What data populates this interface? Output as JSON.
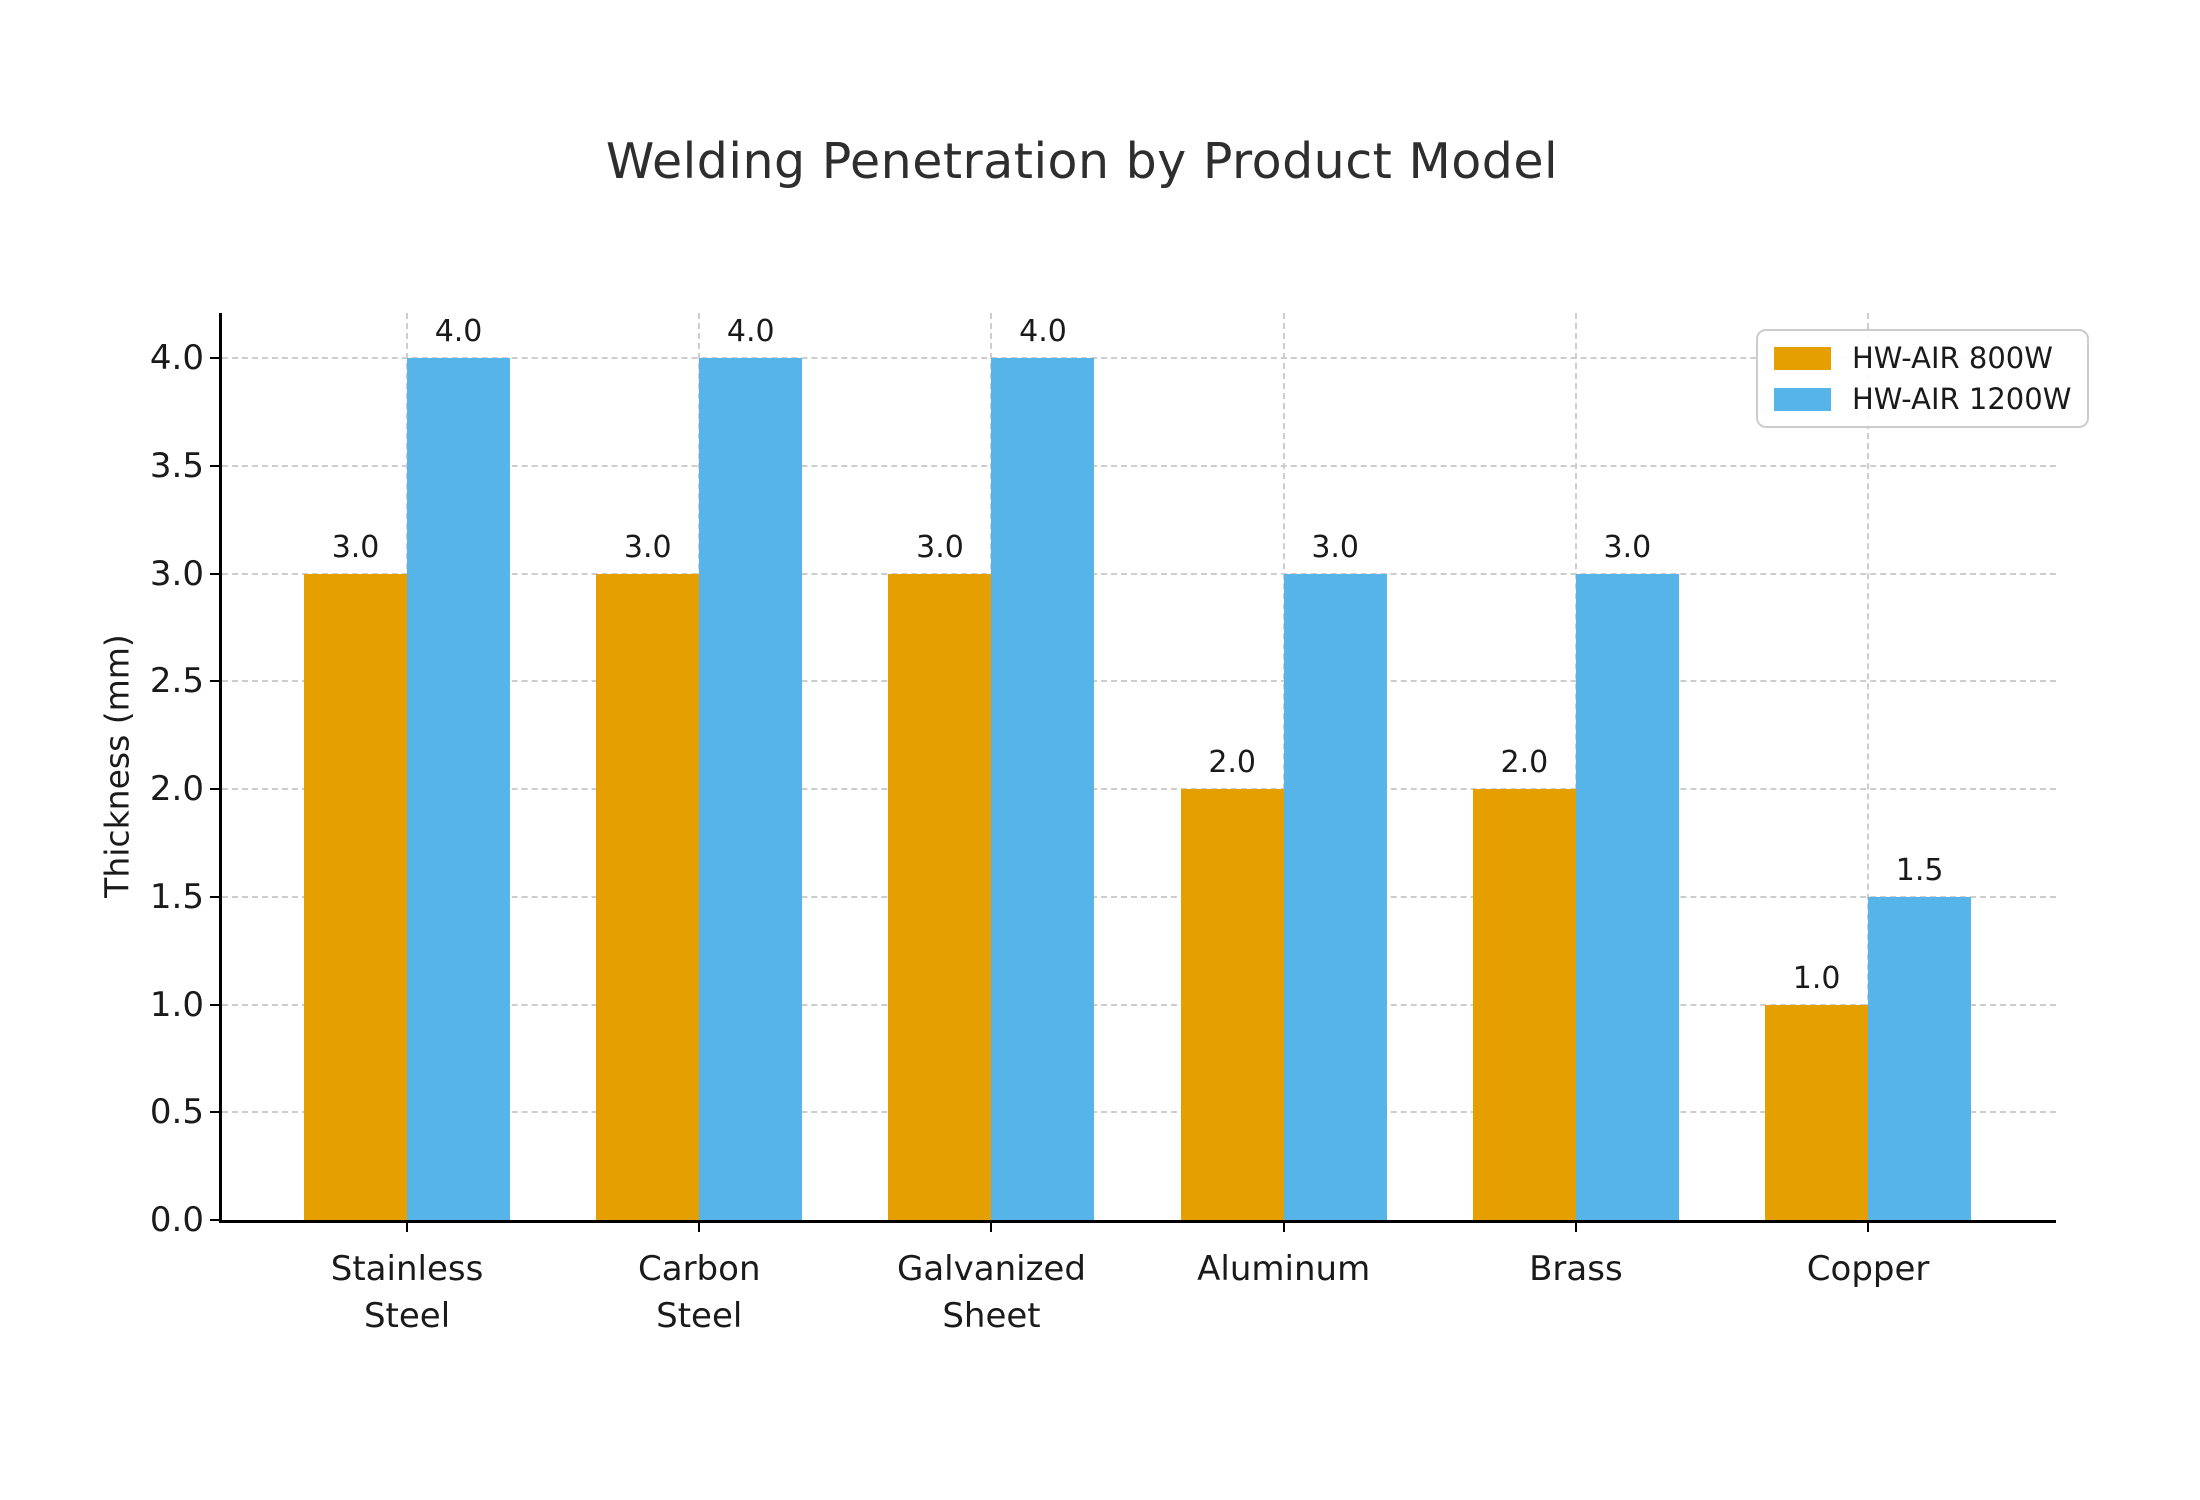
{
  "chart_data": {
    "type": "bar",
    "title": "Welding Penetration by Product Model",
    "xlabel": "",
    "ylabel": "Thickness (mm)",
    "categories": [
      "Stainless Steel",
      "Carbon Steel",
      "Galvanized Sheet",
      "Aluminum",
      "Brass",
      "Copper"
    ],
    "category_line_breaks": [
      [
        "Stainless",
        "Steel"
      ],
      [
        "Carbon",
        "Steel"
      ],
      [
        "Galvanized",
        "Sheet"
      ],
      [
        "Aluminum"
      ],
      [
        "Brass"
      ],
      [
        "Copper"
      ]
    ],
    "series": [
      {
        "name": "HW-AIR 800W",
        "color": "#E69F00",
        "values": [
          3.0,
          3.0,
          3.0,
          2.0,
          2.0,
          1.0
        ]
      },
      {
        "name": "HW-AIR 1200W",
        "color": "#56B4E9",
        "values": [
          4.0,
          4.0,
          4.0,
          3.0,
          3.0,
          1.5
        ]
      }
    ],
    "yticks": [
      0.0,
      0.5,
      1.0,
      1.5,
      2.0,
      2.5,
      3.0,
      3.5,
      4.0
    ],
    "ylim": [
      0,
      4.21
    ],
    "grid": true,
    "grid_style": "dashed",
    "legend_position": "upper right",
    "value_labels_shown": true,
    "colors": {
      "grid": "#cdcdcd",
      "axis": "#000000",
      "text": "#1a1a1a",
      "title": "#2e2e2e",
      "background": "#ffffff",
      "legend_border": "#cccccc"
    }
  }
}
